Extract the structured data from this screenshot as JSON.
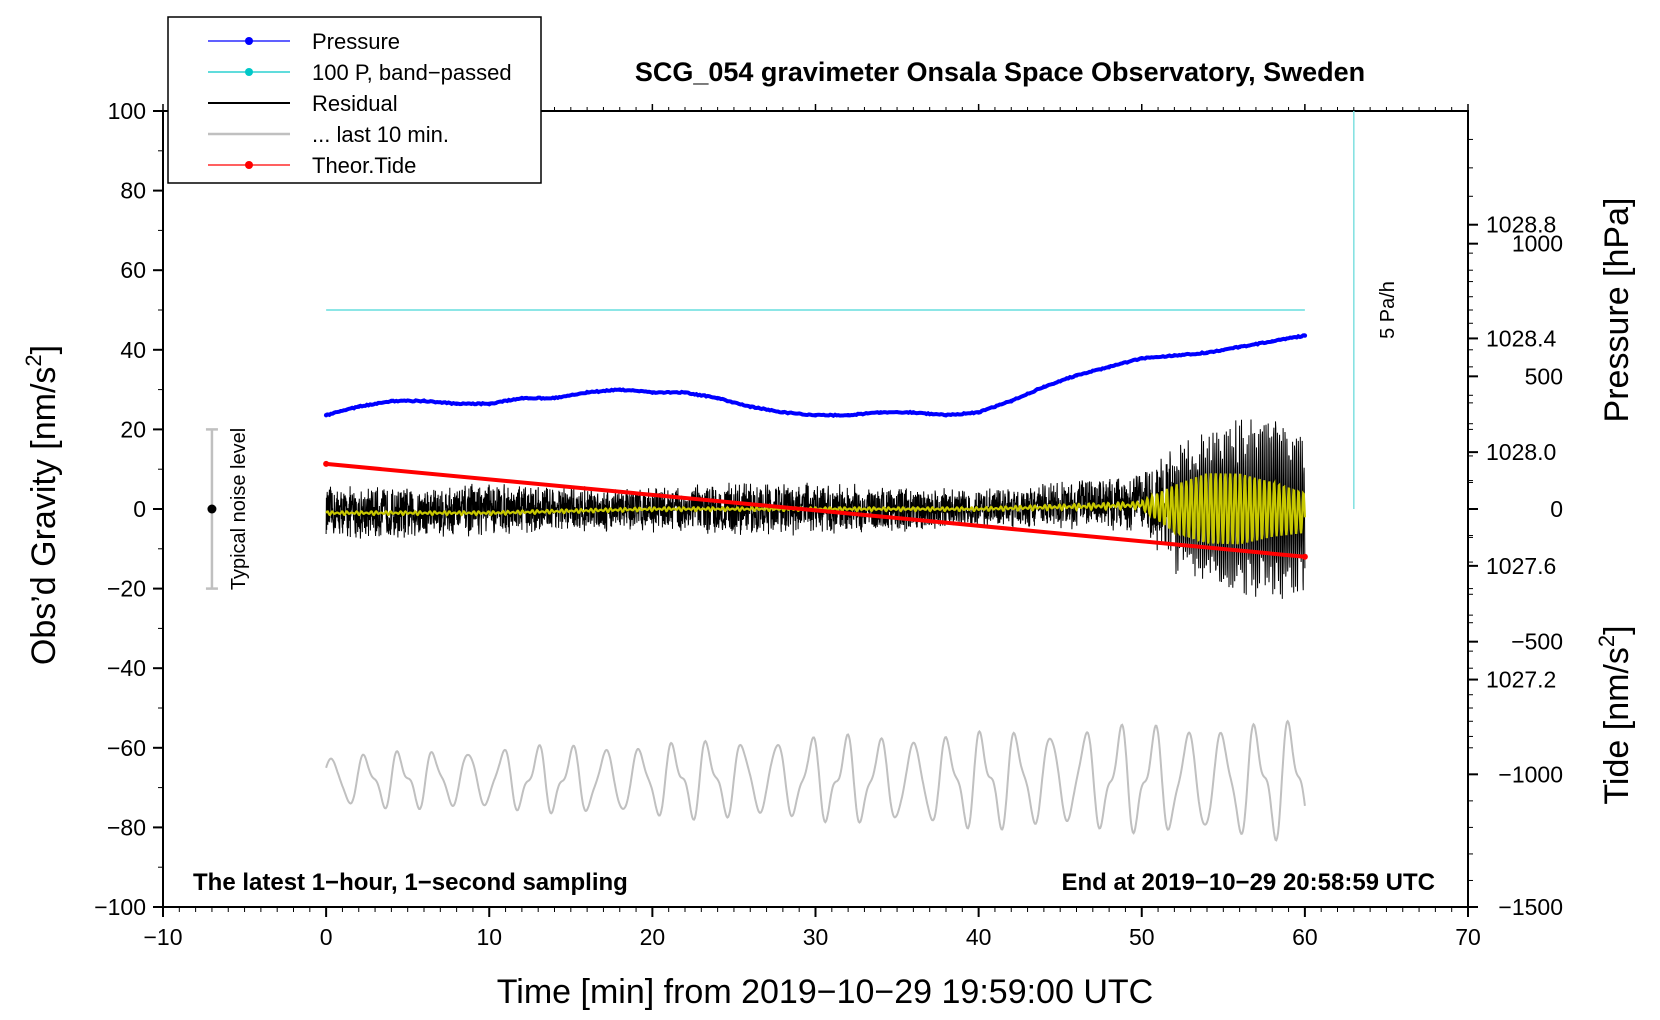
{
  "chart_data": {
    "type": "line",
    "title": "SCG_054 gravimeter Onsala Space Observatory, Sweden",
    "xlabel": "Time [min] from 2019−10−29 19:59:00 UTC",
    "ylabel_left": "Obs’d Gravity [nm/s²]",
    "ylabel_left_main": "Obs’d Gravity [nm/s",
    "ylabel_left_sup": "2",
    "ylabel_left_end": "]",
    "ylabel_right_top": "Pressure [hPa]",
    "ylabel_right_bottom": "Tide [nm/s²]",
    "ylabel_right_bottom_main": "Tide [nm/s",
    "ylabel_right_bottom_sup": "2",
    "ylabel_right_bottom_end": "]",
    "xlim": [
      -10,
      70
    ],
    "ylim": [
      -100,
      100
    ],
    "pressure_ylim": [
      1026.4,
      1029.2
    ],
    "tide_ylim": [
      -1500,
      1500
    ],
    "x_ticks": [
      "−10",
      "0",
      "10",
      "20",
      "30",
      "40",
      "50",
      "60",
      "70"
    ],
    "x_tick_values": [
      -10,
      0,
      10,
      20,
      30,
      40,
      50,
      60,
      70
    ],
    "y_ticks": [
      "100",
      "80",
      "60",
      "40",
      "20",
      "0",
      "−20",
      "−40",
      "−60",
      "−80",
      "−100"
    ],
    "y_tick_values": [
      100,
      80,
      60,
      40,
      20,
      0,
      -20,
      -40,
      -60,
      -80,
      -100
    ],
    "pressure_ticks": [
      "1028.8",
      "1028.4",
      "1028.0",
      "1027.6",
      "1027.2"
    ],
    "pressure_tick_values": [
      1028.8,
      1028.4,
      1028.0,
      1027.6,
      1027.2
    ],
    "tide_ticks": [
      "1000",
      "500",
      "0",
      "−500",
      "−1000",
      "−1500"
    ],
    "tide_tick_values": [
      1000,
      500,
      0,
      -500,
      -1000,
      -1500
    ],
    "legend": [
      {
        "label": "Pressure",
        "color": "#0000ff",
        "marker": true
      },
      {
        "label": "100 P, band−passed",
        "color": "#00c8c8",
        "marker": true
      },
      {
        "label": "Residual",
        "color": "#000000",
        "marker": false
      },
      {
        "label": "... last 10 min.",
        "color": "#c0c0c0",
        "marker": false
      },
      {
        "label": "Theor.Tide",
        "color": "#ff0000",
        "marker": true
      }
    ],
    "legend_placement": "top-left",
    "bottom_left_note": "The latest 1−hour, 1−second sampling",
    "bottom_right_note": "End at 2019−10−29 20:58:59 UTC",
    "noise_bar": {
      "label": "Typical noise level",
      "x": -7,
      "center": 0,
      "low": -20,
      "high": 20
    },
    "rate_scale": {
      "label": "5 Pa/h",
      "x": 63,
      "y_top": 100,
      "y_bottom": 0
    },
    "series": [
      {
        "name": "Pressure",
        "color": "#0000ff",
        "axis": "pressure",
        "x": [
          0,
          2,
          4,
          6,
          8,
          10,
          12,
          14,
          16,
          18,
          20,
          22,
          24,
          26,
          28,
          30,
          32,
          34,
          36,
          38,
          40,
          42,
          44,
          46,
          48,
          50,
          52,
          54,
          56,
          58,
          60
        ],
        "values": [
          1028.13,
          1028.16,
          1028.18,
          1028.18,
          1028.17,
          1028.17,
          1028.19,
          1028.19,
          1028.21,
          1028.22,
          1028.21,
          1028.21,
          1028.19,
          1028.16,
          1028.14,
          1028.13,
          1028.13,
          1028.14,
          1028.14,
          1028.13,
          1028.14,
          1028.18,
          1028.23,
          1028.27,
          1028.3,
          1028.33,
          1028.34,
          1028.35,
          1028.37,
          1028.39,
          1028.41
        ]
      },
      {
        "name": "100 P, band-passed",
        "color": "#00c8c8",
        "axis": "gravity",
        "x": [
          0,
          60
        ],
        "values": [
          50,
          50
        ]
      },
      {
        "name": "Residual",
        "color": "#000000",
        "axis": "gravity",
        "note": "noisy trace around 0, amplitude growing from about ±7 to ±25 nm/s² after minute 52; max about 30 near minute 59.5",
        "x": [
          0,
          5,
          10,
          15,
          20,
          25,
          30,
          35,
          40,
          45,
          50,
          52,
          54,
          56,
          58,
          60
        ],
        "values": [
          -1,
          -1,
          0,
          0,
          0,
          0,
          0,
          0,
          0,
          1,
          2,
          0,
          0,
          0,
          0,
          -2
        ],
        "amplitude": [
          7,
          7,
          7,
          6,
          6,
          7,
          7,
          6,
          5,
          6,
          8,
          17,
          20,
          23,
          25,
          20
        ]
      },
      {
        "name": "Residual (smoothed)",
        "color": "#c8c800",
        "axis": "gravity",
        "x": [
          0,
          10,
          20,
          30,
          40,
          50,
          52,
          54,
          56,
          58,
          60
        ],
        "values": [
          -1,
          -1,
          0,
          0,
          0,
          1,
          0,
          0,
          0,
          0,
          -1
        ],
        "amplitude": [
          0.5,
          0.5,
          0.5,
          0.5,
          0.5,
          1,
          6,
          9,
          9,
          7,
          5
        ]
      },
      {
        "name": "... last 10 min.",
        "color": "#c0c0c0",
        "axis": "gravity",
        "note": "residual of the last 10 min drawn across the full hour, oscillating between about -85 and -55 nm/s² with ~2 min period",
        "x": [
          0,
          60
        ],
        "center": -68,
        "amplitude_start": 7,
        "amplitude_end": 16
      },
      {
        "name": "Theor.Tide",
        "color": "#ff0000",
        "axis": "tide",
        "x": [
          0,
          60
        ],
        "values": [
          170,
          -180
        ]
      }
    ]
  }
}
